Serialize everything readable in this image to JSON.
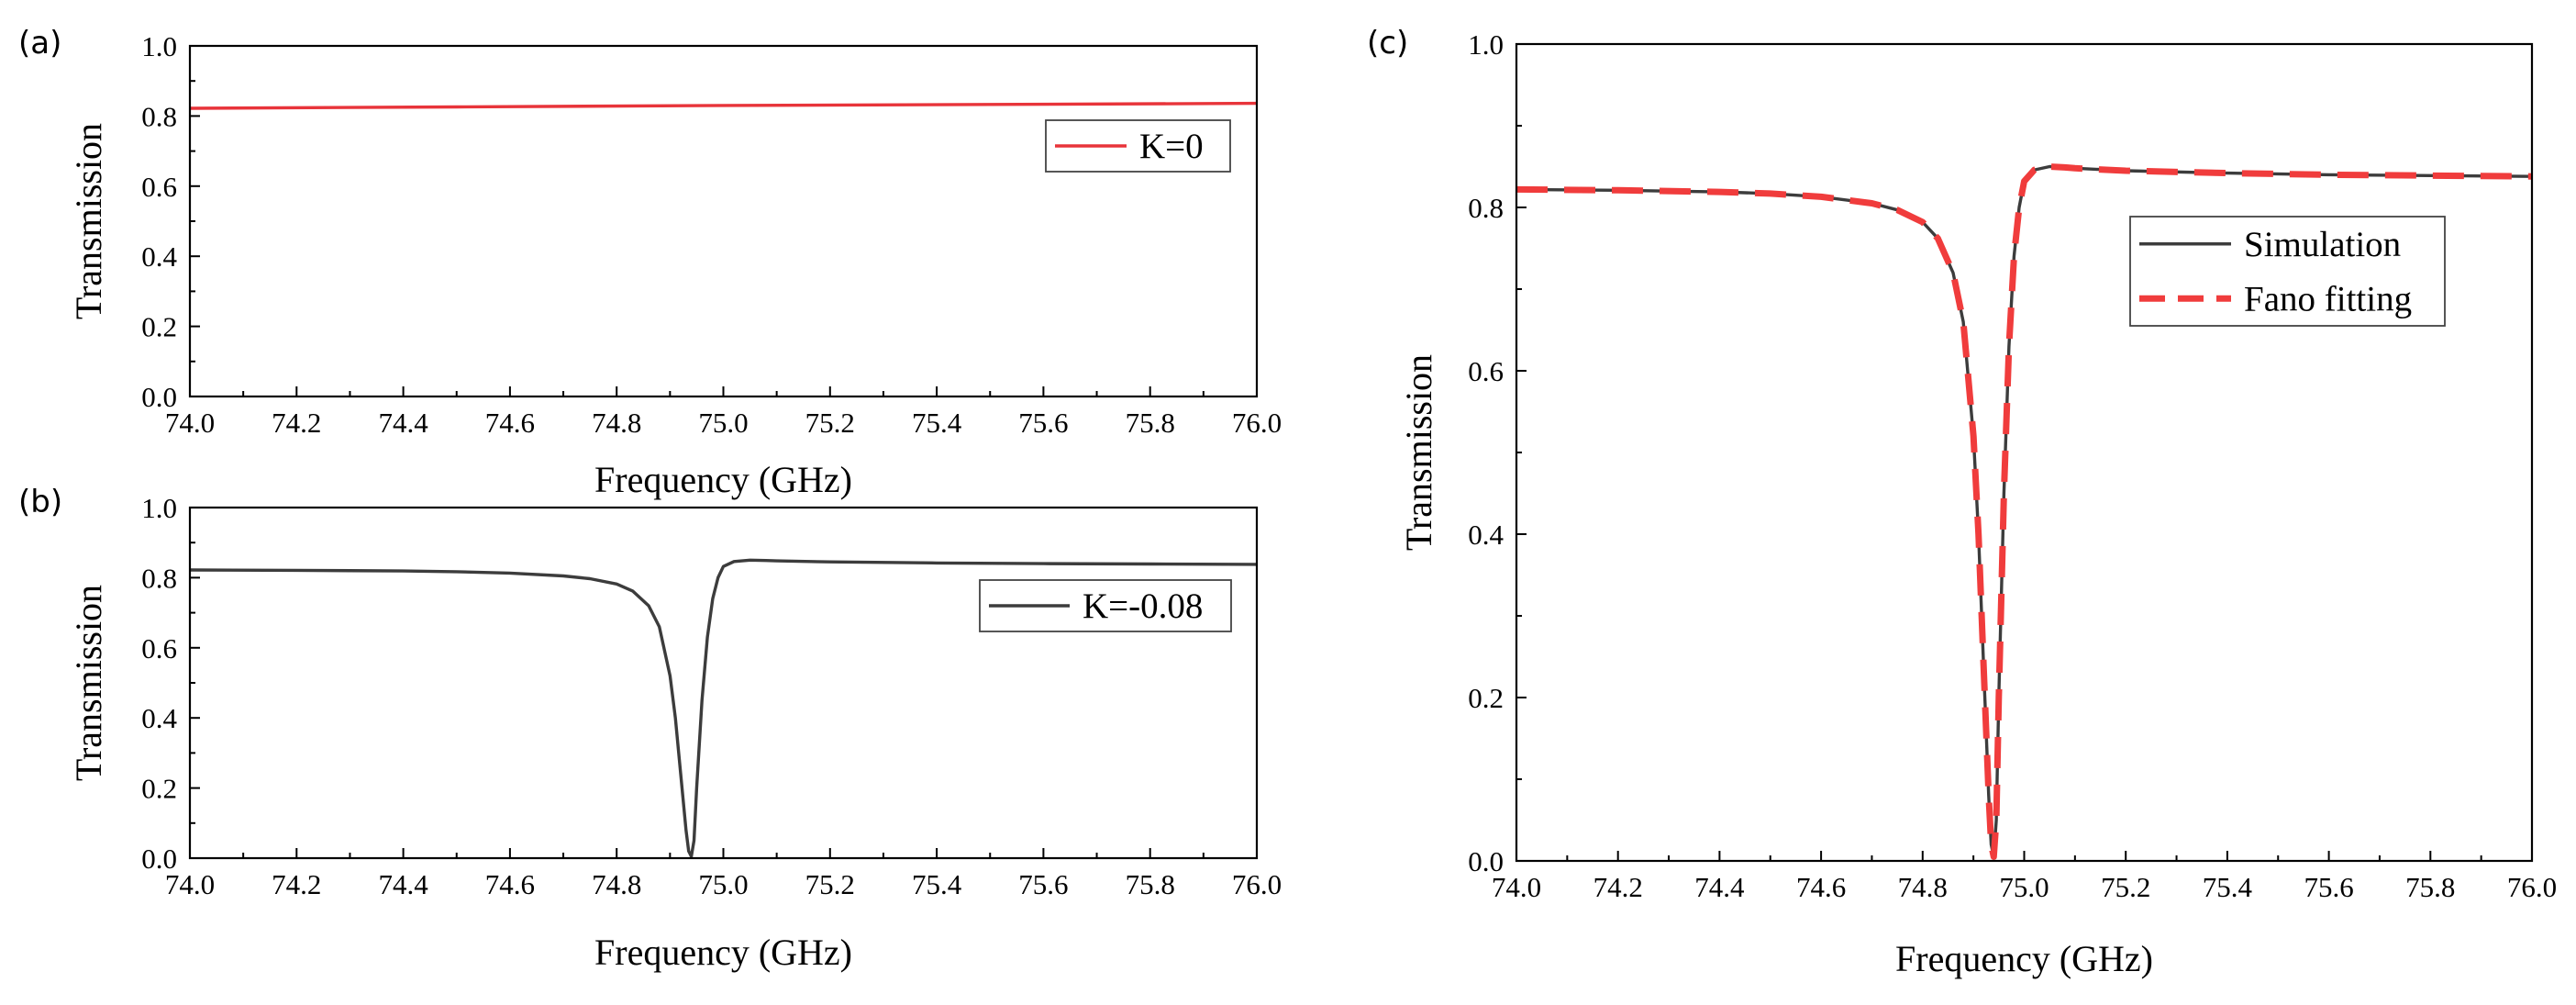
{
  "chart_data": [
    {
      "panel_label": "(a)",
      "type": "line",
      "xlabel": "Frequency (GHz)",
      "ylabel": "Transmission",
      "xlim": [
        74.0,
        76.0
      ],
      "ylim": [
        0.0,
        1.0
      ],
      "x_ticks": [
        "74.0",
        "74.2",
        "74.4",
        "74.6",
        "74.8",
        "75.0",
        "75.2",
        "75.4",
        "75.6",
        "75.8",
        "76.0"
      ],
      "y_ticks": [
        "0.0",
        "0.2",
        "0.4",
        "0.6",
        "0.8",
        "1.0"
      ],
      "legend_position": "right",
      "series": [
        {
          "name": "K=0",
          "color": "#e8343a",
          "style": "solid",
          "x": [
            74.0,
            74.5,
            75.0,
            75.5,
            76.0
          ],
          "y": [
            0.822,
            0.826,
            0.83,
            0.833,
            0.836
          ]
        }
      ]
    },
    {
      "panel_label": "(b)",
      "type": "line",
      "xlabel": "Frequency (GHz)",
      "ylabel": "Transmission",
      "xlim": [
        74.0,
        76.0
      ],
      "ylim": [
        0.0,
        1.0
      ],
      "x_ticks": [
        "74.0",
        "74.2",
        "74.4",
        "74.6",
        "74.8",
        "75.0",
        "75.2",
        "75.4",
        "75.6",
        "75.8",
        "76.0"
      ],
      "y_ticks": [
        "0.0",
        "0.2",
        "0.4",
        "0.6",
        "0.8",
        "1.0"
      ],
      "legend_position": "right",
      "series": [
        {
          "name": "K=-0.08",
          "color": "#3c3c3c",
          "style": "solid",
          "x": [
            74.0,
            74.2,
            74.4,
            74.5,
            74.6,
            74.7,
            74.75,
            74.8,
            74.83,
            74.86,
            74.88,
            74.9,
            74.91,
            74.92,
            74.93,
            74.935,
            74.94,
            74.945,
            74.95,
            74.96,
            74.97,
            74.98,
            74.99,
            75.0,
            75.02,
            75.05,
            75.08,
            75.1,
            75.2,
            75.4,
            75.6,
            75.8,
            76.0
          ],
          "y": [
            0.822,
            0.821,
            0.819,
            0.817,
            0.813,
            0.805,
            0.797,
            0.782,
            0.762,
            0.72,
            0.66,
            0.52,
            0.4,
            0.24,
            0.08,
            0.02,
            0.005,
            0.05,
            0.2,
            0.45,
            0.63,
            0.74,
            0.8,
            0.832,
            0.846,
            0.85,
            0.849,
            0.848,
            0.845,
            0.842,
            0.84,
            0.839,
            0.838
          ]
        }
      ]
    },
    {
      "panel_label": "(c)",
      "type": "line",
      "xlabel": "Frequency (GHz)",
      "ylabel": "Transmission",
      "xlim": [
        74.0,
        76.0
      ],
      "ylim": [
        0.0,
        1.0
      ],
      "x_ticks": [
        "74.0",
        "74.2",
        "74.4",
        "74.6",
        "74.8",
        "75.0",
        "75.2",
        "75.4",
        "75.6",
        "75.8",
        "76.0"
      ],
      "y_ticks": [
        "0.0",
        "0.2",
        "0.4",
        "0.6",
        "0.8",
        "1.0"
      ],
      "legend_position": "right",
      "series": [
        {
          "name": "Simulation",
          "color": "#3c3c3c",
          "style": "solid",
          "x": [
            74.0,
            74.2,
            74.4,
            74.5,
            74.6,
            74.7,
            74.75,
            74.8,
            74.83,
            74.86,
            74.88,
            74.9,
            74.91,
            74.92,
            74.93,
            74.935,
            74.94,
            74.945,
            74.95,
            74.96,
            74.97,
            74.98,
            74.99,
            75.0,
            75.02,
            75.05,
            75.08,
            75.1,
            75.2,
            75.4,
            75.6,
            75.8,
            76.0
          ],
          "y": [
            0.822,
            0.821,
            0.819,
            0.817,
            0.813,
            0.805,
            0.797,
            0.782,
            0.762,
            0.72,
            0.66,
            0.52,
            0.4,
            0.24,
            0.08,
            0.02,
            0.005,
            0.05,
            0.2,
            0.45,
            0.63,
            0.74,
            0.8,
            0.832,
            0.846,
            0.85,
            0.849,
            0.848,
            0.845,
            0.842,
            0.84,
            0.839,
            0.838
          ]
        },
        {
          "name": "Fano fitting",
          "color": "#f03c3c",
          "style": "dashed",
          "x": [
            74.0,
            74.2,
            74.4,
            74.5,
            74.6,
            74.7,
            74.75,
            74.8,
            74.83,
            74.86,
            74.88,
            74.9,
            74.91,
            74.92,
            74.93,
            74.935,
            74.94,
            74.945,
            74.95,
            74.96,
            74.97,
            74.98,
            74.99,
            75.0,
            75.02,
            75.05,
            75.08,
            75.1,
            75.2,
            75.4,
            75.6,
            75.8,
            76.0
          ],
          "y": [
            0.822,
            0.821,
            0.819,
            0.817,
            0.813,
            0.805,
            0.797,
            0.782,
            0.762,
            0.72,
            0.66,
            0.52,
            0.4,
            0.24,
            0.08,
            0.02,
            0.005,
            0.05,
            0.2,
            0.45,
            0.63,
            0.74,
            0.8,
            0.832,
            0.846,
            0.85,
            0.849,
            0.848,
            0.845,
            0.842,
            0.84,
            0.839,
            0.838
          ]
        }
      ]
    }
  ]
}
